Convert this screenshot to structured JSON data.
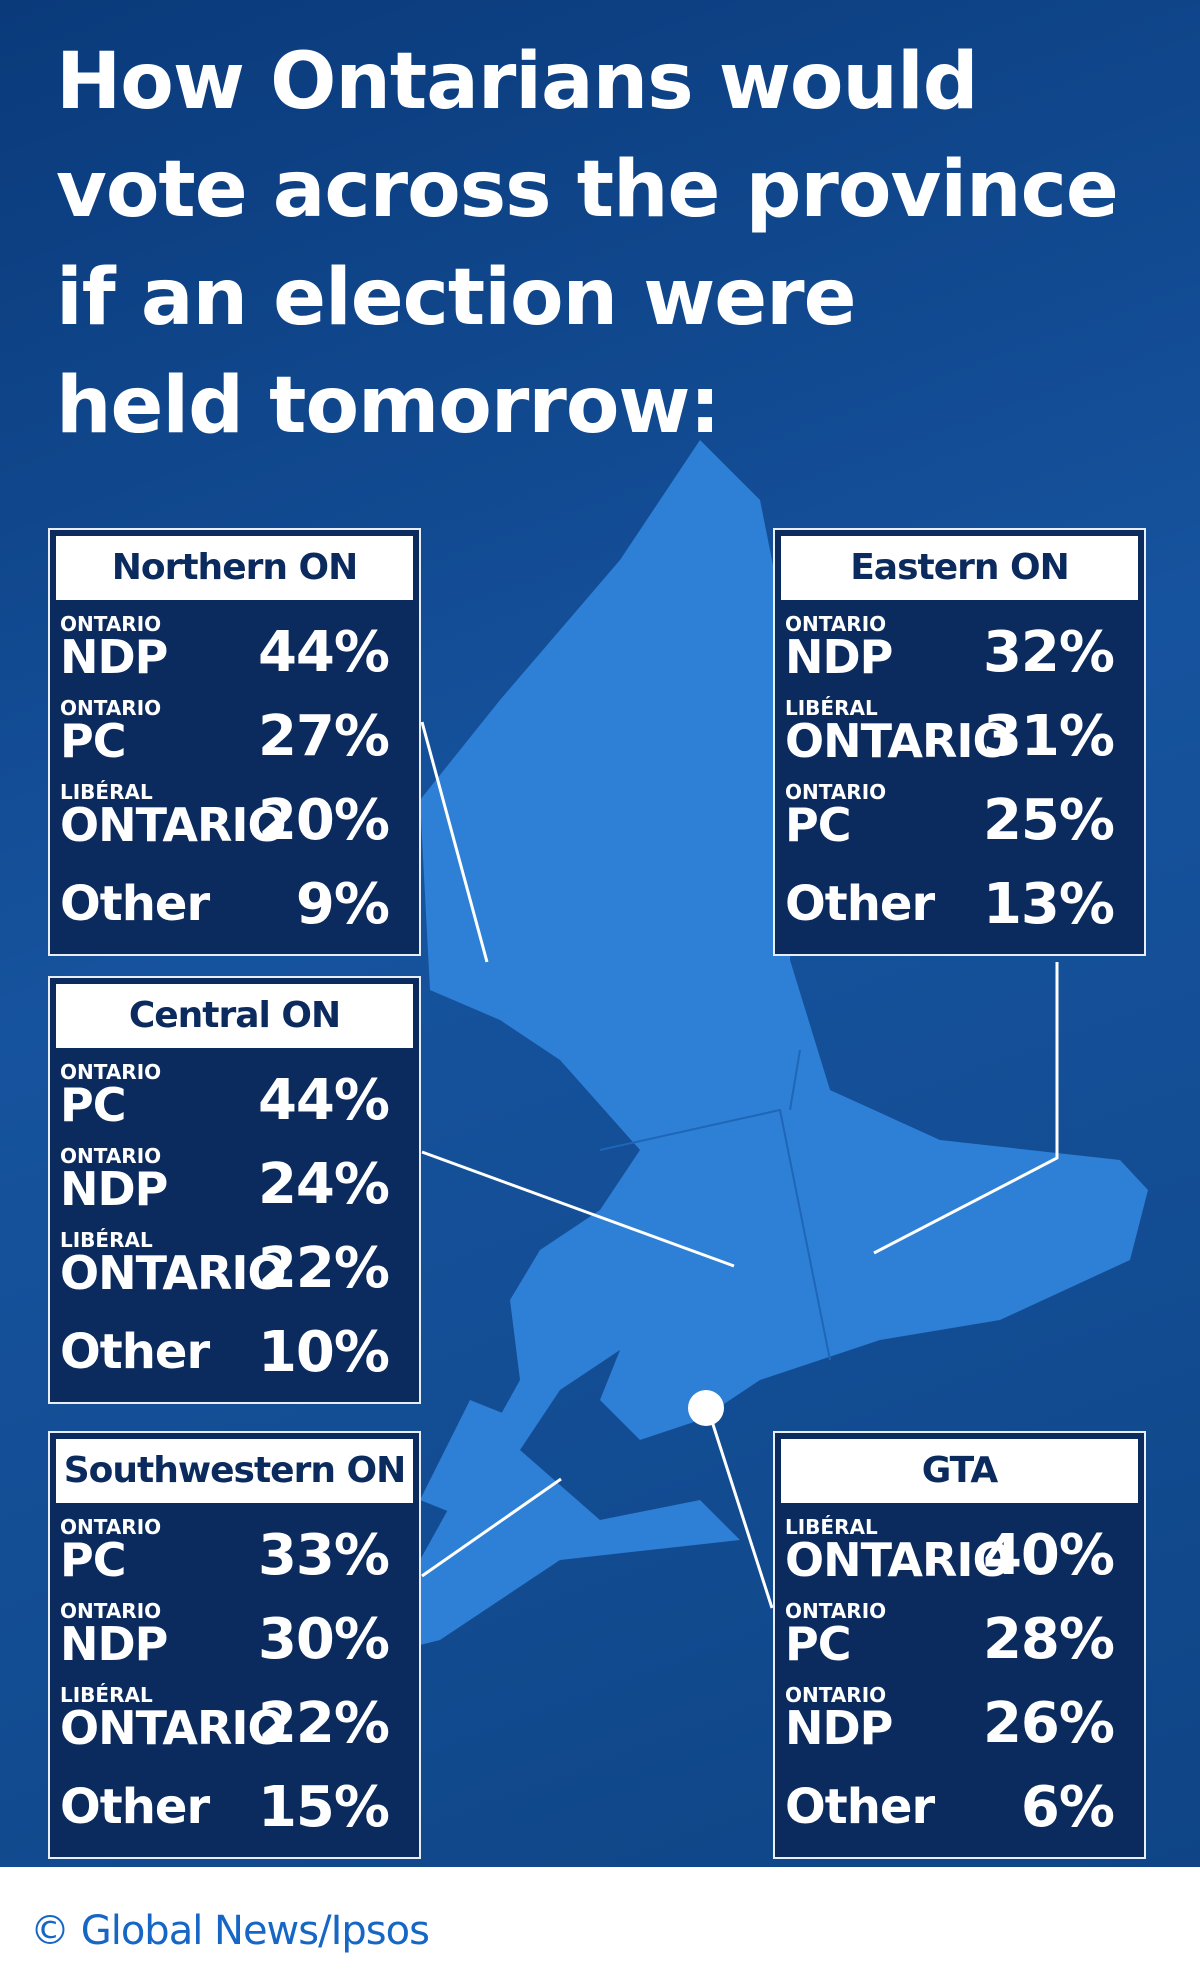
{
  "title_lines": [
    "How Ontarians would",
    "vote across the province",
    "if an election were",
    "held tomorrow:"
  ],
  "regions": [
    {
      "name": "Northern ON",
      "rows": [
        {
          "party": [
            "ONTARIO",
            "NDP"
          ],
          "value": "44%"
        },
        {
          "party": [
            "ONTARIO",
            "PC"
          ],
          "value": "27%"
        },
        {
          "party": [
            "LIBÉRAL",
            "ONTARIO"
          ],
          "value": "20%"
        },
        {
          "party": [
            "Other"
          ],
          "value": "9%"
        }
      ]
    },
    {
      "name": "Eastern ON",
      "rows": [
        {
          "party": [
            "ONTARIO",
            "NDP"
          ],
          "value": "32%"
        },
        {
          "party": [
            "LIBÉRAL",
            "ONTARIO"
          ],
          "value": "31%"
        },
        {
          "party": [
            "ONTARIO",
            "PC"
          ],
          "value": "25%"
        },
        {
          "party": [
            "Other"
          ],
          "value": "13%"
        }
      ]
    },
    {
      "name": "Central ON",
      "rows": [
        {
          "party": [
            "ONTARIO",
            "PC"
          ],
          "value": "44%"
        },
        {
          "party": [
            "ONTARIO",
            "NDP"
          ],
          "value": "24%"
        },
        {
          "party": [
            "LIBÉRAL",
            "ONTARIO"
          ],
          "value": "22%"
        },
        {
          "party": [
            "Other"
          ],
          "value": "10%"
        }
      ]
    },
    {
      "name": "Southwestern ON",
      "rows": [
        {
          "party": [
            "ONTARIO",
            "PC"
          ],
          "value": "33%"
        },
        {
          "party": [
            "ONTARIO",
            "NDP"
          ],
          "value": "30%"
        },
        {
          "party": [
            "LIBÉRAL",
            "ONTARIO"
          ],
          "value": "22%"
        },
        {
          "party": [
            "Other"
          ],
          "value": "15%"
        }
      ]
    },
    {
      "name": "GTA",
      "rows": [
        {
          "party": [
            "LIBÉRAL",
            "ONTARIO"
          ],
          "value": "40%"
        },
        {
          "party": [
            "ONTARIO",
            "PC"
          ],
          "value": "28%"
        },
        {
          "party": [
            "ONTARIO",
            "NDP"
          ],
          "value": "26%"
        },
        {
          "party": [
            "Other"
          ],
          "value": "6%"
        }
      ]
    }
  ],
  "credit": "© Global News/Ipsos"
}
